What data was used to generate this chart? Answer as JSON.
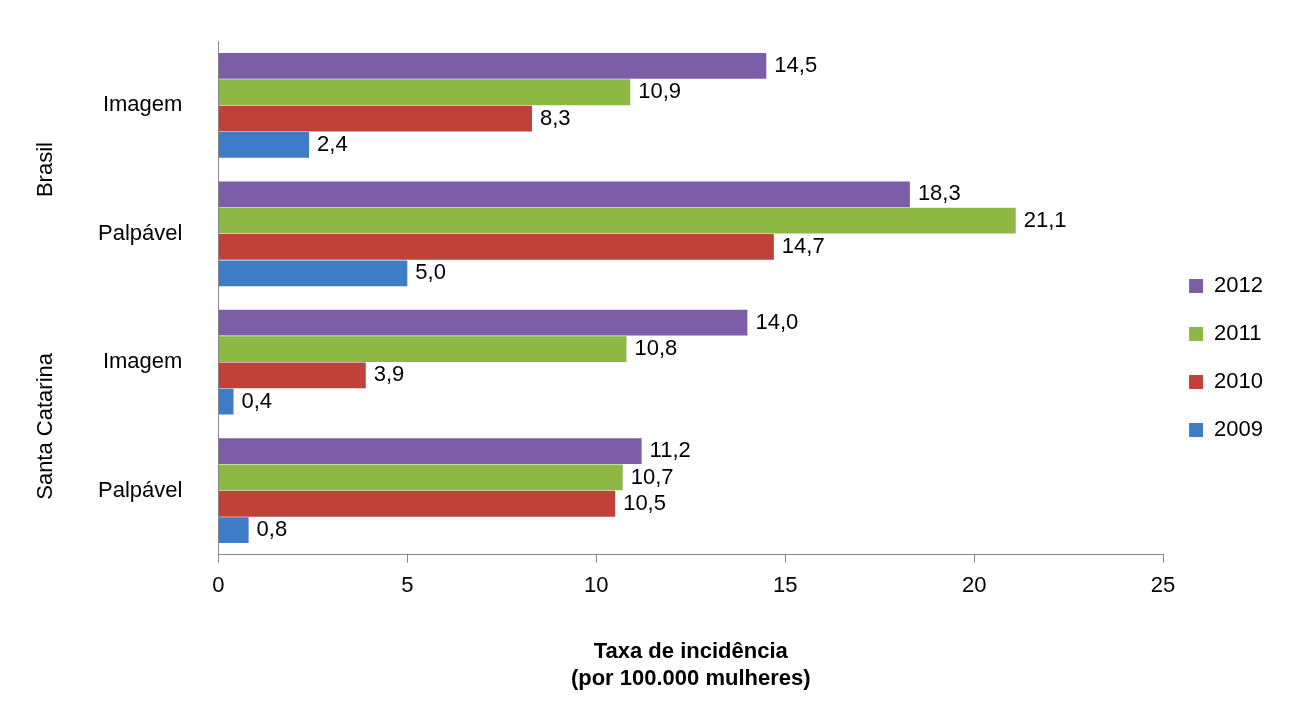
{
  "chart_data": {
    "type": "bar",
    "orientation": "horizontal",
    "categories": [
      "Imagem",
      "Palpável",
      "Imagem",
      "Palpável"
    ],
    "series": [
      {
        "name": "2012",
        "color": "#7b5ea7",
        "values": [
          14.5,
          18.3,
          14.0,
          11.2
        ],
        "value_labels": [
          "14,5",
          "18,3",
          "14,0",
          "11,2"
        ]
      },
      {
        "name": "2011",
        "color": "#8db843",
        "values": [
          10.9,
          21.1,
          10.8,
          10.7
        ],
        "value_labels": [
          "10,9",
          "21,1",
          "10,8",
          "10,7"
        ]
      },
      {
        "name": "2010",
        "color": "#c0403a",
        "values": [
          8.3,
          14.7,
          3.9,
          10.5
        ],
        "value_labels": [
          "8,3",
          "14,7",
          "3,9",
          "10,5"
        ]
      },
      {
        "name": "2009",
        "color": "#3f7cc8",
        "values": [
          2.4,
          5.0,
          0.4,
          0.8
        ],
        "value_labels": [
          "2,4",
          "5,0",
          "0,4",
          "0,8"
        ]
      }
    ],
    "xlim": [
      0,
      25
    ],
    "xticks": [
      0,
      5,
      10,
      15,
      20,
      25
    ],
    "xlabel": "Taxa de incidência\n(por 100.000 mulheres)",
    "annotations": [
      "Brasil",
      "Santa Catarina"
    ],
    "legend": "right",
    "grid": false
  }
}
